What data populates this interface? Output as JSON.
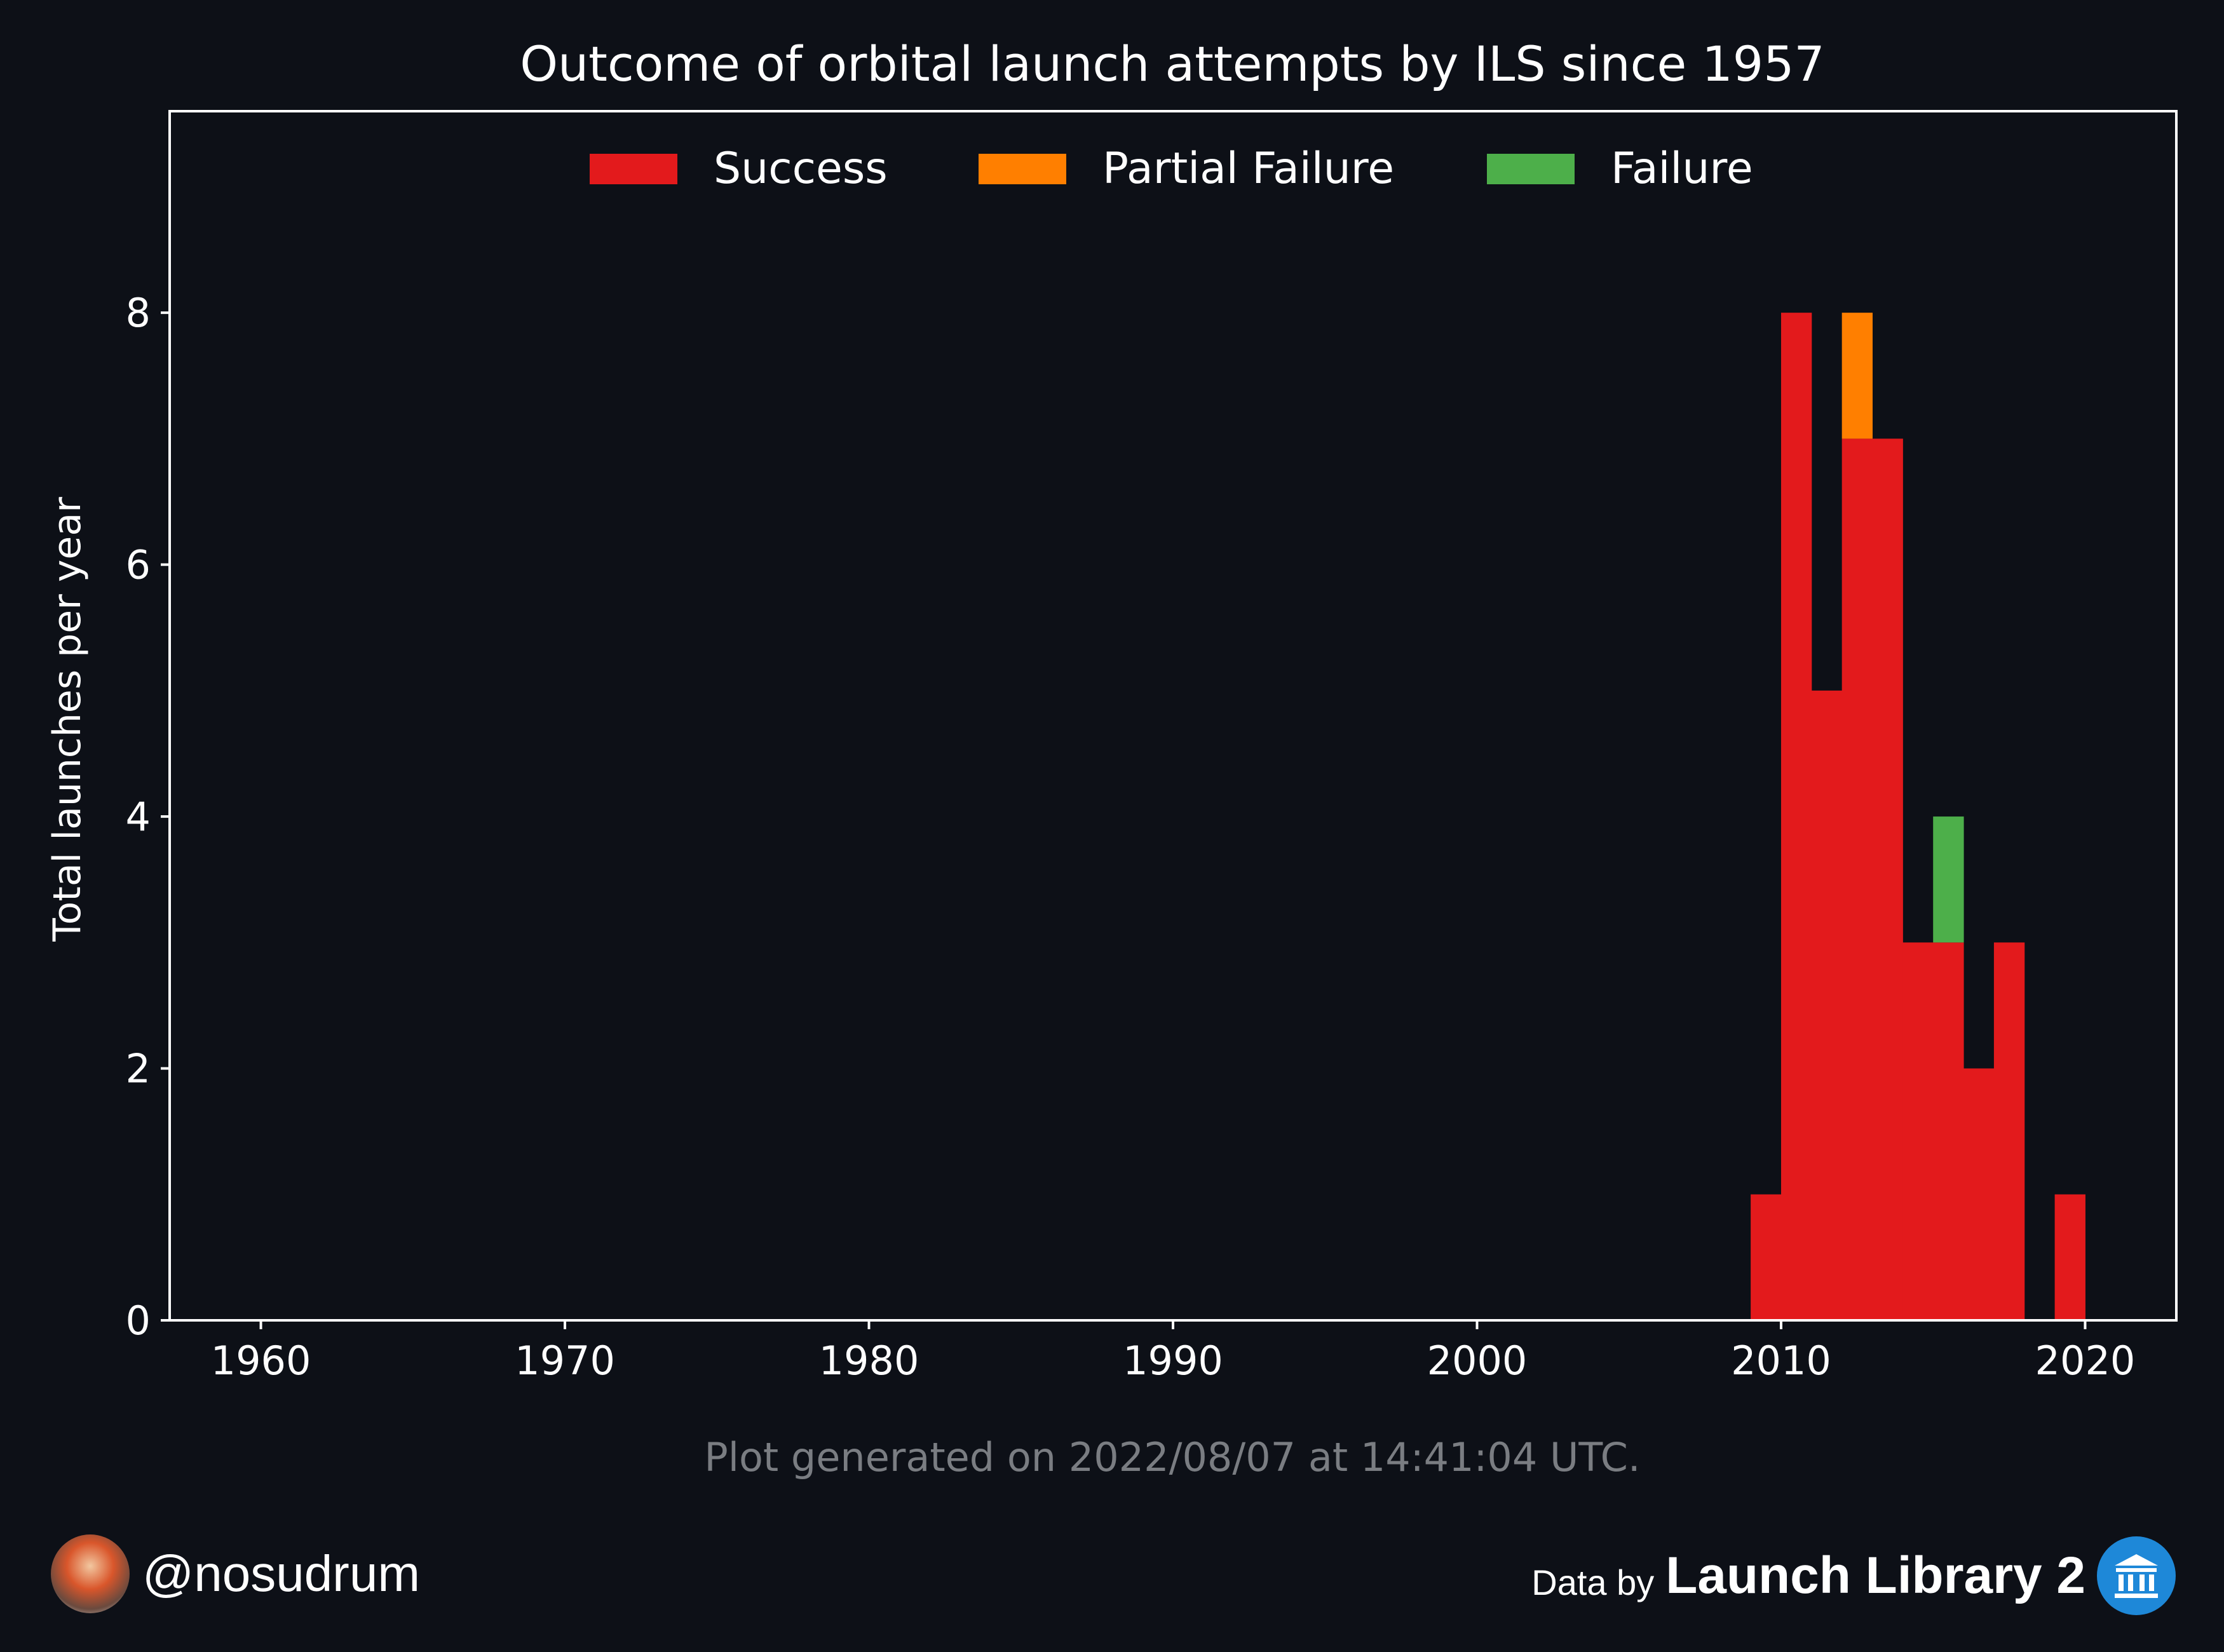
{
  "chart_data": {
    "type": "bar",
    "stacked": true,
    "title": "Outcome of orbital launch attempts by ILS since 1957",
    "xlabel": "",
    "ylabel": "Total launches per year",
    "xlim": [
      1957,
      2023
    ],
    "ylim": [
      0,
      9.6
    ],
    "xticks": [
      1960,
      1970,
      1980,
      1990,
      2000,
      2010,
      2020
    ],
    "yticks": [
      0,
      2,
      4,
      6,
      8
    ],
    "grid": false,
    "legend_position": "top-center",
    "years": [
      2009,
      2010,
      2011,
      2012,
      2013,
      2014,
      2015,
      2016,
      2017,
      2018,
      2019
    ],
    "series": [
      {
        "name": "Success",
        "color": "#e31a1c",
        "values": [
          1,
          8,
          5,
          7,
          7,
          3,
          3,
          2,
          3,
          0,
          1
        ]
      },
      {
        "name": "Partial Failure",
        "color": "#ff7f00",
        "values": [
          0,
          0,
          0,
          1,
          0,
          0,
          0,
          0,
          0,
          0,
          0
        ]
      },
      {
        "name": "Failure",
        "color": "#4daf4a",
        "values": [
          0,
          0,
          0,
          0,
          0,
          0,
          1,
          0,
          0,
          0,
          0
        ]
      }
    ]
  },
  "footer": {
    "generated": "Plot generated on 2022/08/07 at 14:41:04 UTC.",
    "handle": "@nosudrum",
    "data_by": "Data by",
    "brand": "Launch Library 2",
    "brand_icon": "museum-icon"
  },
  "colors": {
    "background": "#0d1017",
    "axis": "#ffffff",
    "muted_text": "#7a7d82"
  }
}
